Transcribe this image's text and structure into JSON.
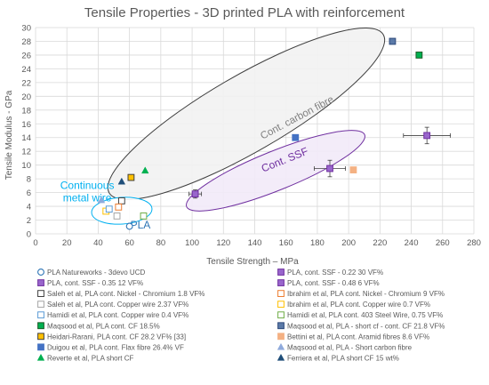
{
  "chart_data": {
    "type": "scatter",
    "title": "Tensile Properties - 3D printed PLA with reinforcement",
    "xlabel": "Tensile Strength – MPa",
    "ylabel": "Tensile Modulus - GPa",
    "xlim": [
      0,
      280
    ],
    "ylim": [
      0,
      30
    ],
    "xticks": [
      0,
      20,
      40,
      60,
      80,
      100,
      120,
      140,
      160,
      180,
      200,
      220,
      240,
      260,
      280
    ],
    "yticks": [
      0,
      2,
      4,
      6,
      8,
      10,
      12,
      14,
      16,
      18,
      20,
      22,
      24,
      26,
      28,
      30
    ],
    "grid": true,
    "legend_position": "bottom",
    "annotations": [
      {
        "text": "PLA",
        "x": 67,
        "y": 0.8,
        "color": "#2e75b6"
      },
      {
        "text": "Continuous",
        "x": 33,
        "y": 6.5,
        "color": "#00b0f0"
      },
      {
        "text": "metal wire",
        "x": 33,
        "y": 4.7,
        "color": "#00b0f0"
      },
      {
        "text": "Cont. carbon fibre",
        "x": 168,
        "y": 16.5,
        "color": "#7f7f7f",
        "rotate": -28
      },
      {
        "text": "Cont. SSF",
        "x": 160,
        "y": 10.3,
        "color": "#7030a0",
        "rotate": -22
      }
    ],
    "series": [
      {
        "name": "PLA Natureworks - 3devo UCD",
        "marker": "circle-open",
        "color": "#2e75b6",
        "points": [
          [
            60,
            1.1
          ]
        ]
      },
      {
        "name": "PLA, cont. SSF - 0.22  30 VF%",
        "marker": "square",
        "color": "#9966cc",
        "stroke": "#7030a0",
        "points": [
          [
            188,
            9.5
          ]
        ],
        "xerr": 10,
        "yerr": 1.2
      },
      {
        "name": "PLA, cont. SSF - 0.35  12 VF%",
        "marker": "square",
        "color": "#9966cc",
        "stroke": "#7030a0",
        "points": [
          [
            102,
            5.8
          ]
        ],
        "xerr": 4,
        "yerr": 0.6
      },
      {
        "name": "PLA, cont. SSF - 0.48    6 VF%",
        "marker": "square",
        "color": "#9966cc",
        "stroke": "#7030a0",
        "points": [
          [
            250,
            14.3
          ]
        ],
        "xerr": 15,
        "yerr": 1.2
      },
      {
        "name": "Saleh et al, PLA cont. Nickel - Chromium 1.8 VF%",
        "marker": "square-open",
        "color": "#404040",
        "points": [
          [
            55,
            4.8
          ]
        ]
      },
      {
        "name": "Ibrahim et al, PLA cont. Nickel - Chromium 9 VF%",
        "marker": "square-open",
        "color": "#ed7d31",
        "points": [
          [
            53,
            3.9
          ]
        ]
      },
      {
        "name": "Saleh et al, PLA cont. Copper wire 2.37 VF%",
        "marker": "square-open",
        "color": "#a6a6a6",
        "points": [
          [
            52,
            2.6
          ]
        ]
      },
      {
        "name": "Ibrahim et al, PLA cont. Copper wire 0.7 VF%",
        "marker": "square-open",
        "color": "#ffc000",
        "points": [
          [
            45,
            3.3
          ]
        ]
      },
      {
        "name": "Hamidi et al, PLA cont. Copper wire 0.4 VF%",
        "marker": "square-open",
        "color": "#5b9bd5",
        "points": [
          [
            47,
            3.6
          ]
        ]
      },
      {
        "name": "Hamidi et al, PLA cont. 403 Steel Wire, 0.75 VF%",
        "marker": "square-open",
        "color": "#70ad47",
        "points": [
          [
            69,
            2.6
          ]
        ]
      },
      {
        "name": "Maqsood et al, PLA cont. CF 18.5%",
        "marker": "square",
        "color": "#00b050",
        "stroke": "#1e5c28",
        "points": [
          [
            245,
            26
          ]
        ]
      },
      {
        "name": "Maqsood et al, PLA - short cf - cont. CF 21.8 VF%",
        "marker": "square",
        "color": "#5b7aa8",
        "stroke": "#2f4b7c",
        "points": [
          [
            228,
            28
          ]
        ]
      },
      {
        "name": "Heidari-Rarani, PLA cont. CF 28.2 VF% [33]",
        "marker": "square",
        "color": "#ffc000",
        "stroke": "#404040",
        "points": [
          [
            61,
            8.2
          ]
        ]
      },
      {
        "name": "Bettini et al, PLA cont. Aramid fibres 8.6 VF%",
        "marker": "square",
        "color": "#f4b183",
        "points": [
          [
            203,
            9.3
          ]
        ]
      },
      {
        "name": "Duigou et al, PLA cont. Flax fibre 26.4% VF",
        "marker": "square",
        "color": "#4472c4",
        "points": [
          [
            166,
            14
          ]
        ]
      },
      {
        "name": "Maqsood et al, PLA - Short carbon fibre",
        "marker": "triangle",
        "color": "#8faadc",
        "points": [
          [
            42,
            4.9
          ]
        ]
      },
      {
        "name": "Reverte et al, PLA short CF",
        "marker": "triangle",
        "color": "#00b050",
        "points": [
          [
            70,
            9.2
          ]
        ]
      },
      {
        "name": "Ferriera et al, PLA short CF 15 wt%",
        "marker": "triangle",
        "color": "#1f4e79",
        "points": [
          [
            55,
            7.6
          ]
        ]
      }
    ]
  }
}
